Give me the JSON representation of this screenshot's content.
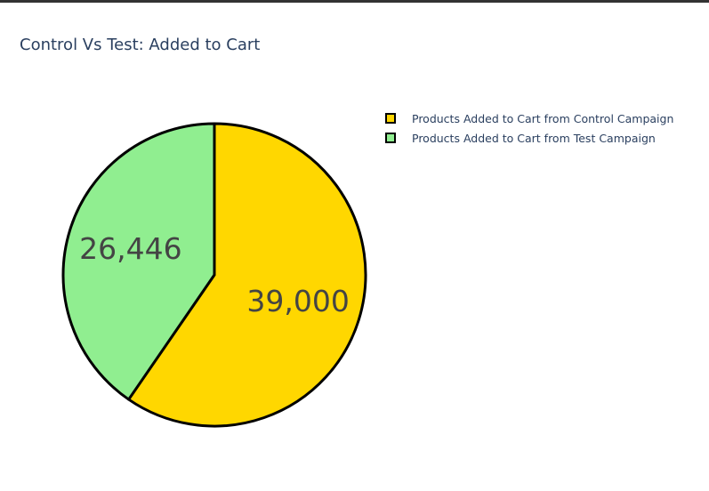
{
  "chart_data": {
    "type": "pie",
    "title": "Control Vs Test: Added to Cart",
    "categories": [
      "Products Added to Cart from Control Campaign",
      "Products Added to Cart from Test Campaign"
    ],
    "values": [
      39000,
      26446
    ],
    "value_labels": [
      "39,000",
      "26,446"
    ],
    "colors": [
      "#ffd700",
      "#90ee90"
    ],
    "legend_position": "top-right"
  }
}
